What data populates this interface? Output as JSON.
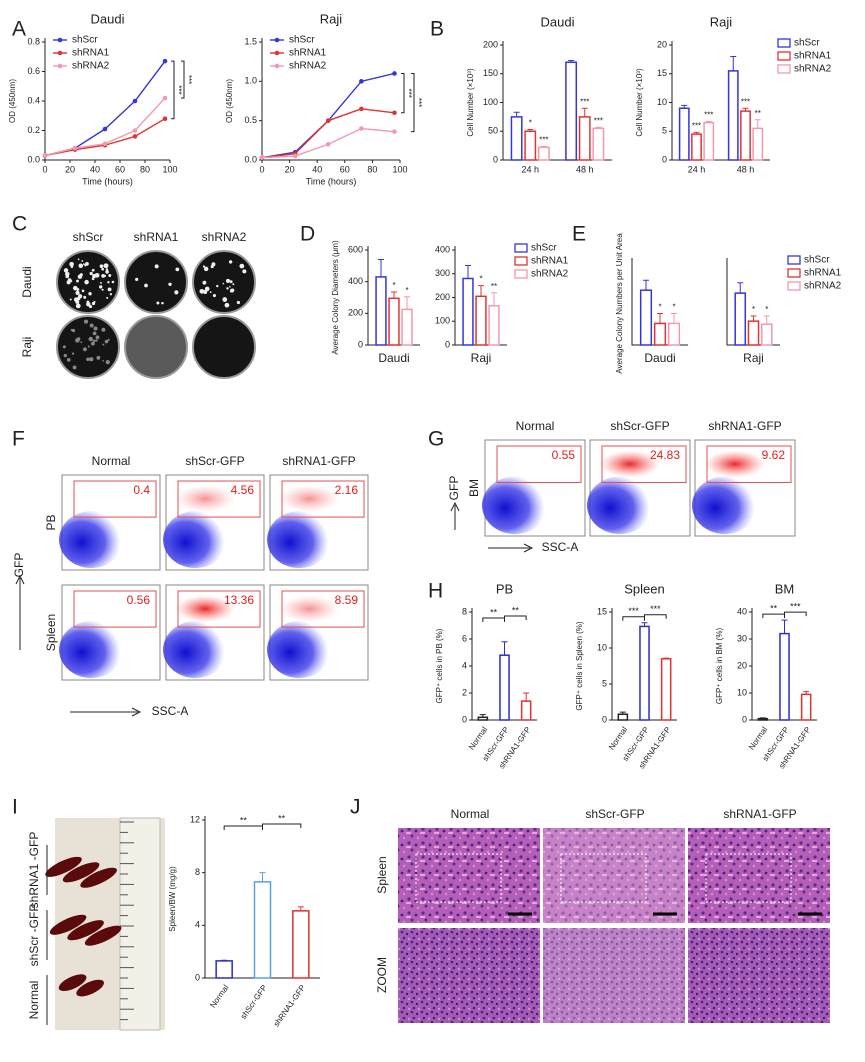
{
  "panel_letters": [
    "A",
    "B",
    "C",
    "D",
    "E",
    "F",
    "G",
    "H",
    "I",
    "J"
  ],
  "chart_data": [
    {
      "type": "line",
      "title": "Daudi",
      "x_label": "Time (hours)",
      "y_label": "OD (450nm)",
      "x": [
        0,
        24,
        48,
        72,
        96
      ],
      "series": [
        {
          "name": "shScr",
          "color": "#3535d8",
          "values": [
            0.03,
            0.08,
            0.21,
            0.4,
            0.67
          ]
        },
        {
          "name": "shRNA1",
          "color": "#e03434",
          "values": [
            0.03,
            0.07,
            0.1,
            0.16,
            0.28
          ]
        },
        {
          "name": "shRNA2",
          "color": "#f29aac",
          "values": [
            0.03,
            0.08,
            0.11,
            0.2,
            0.42
          ]
        }
      ],
      "xlim": [
        0,
        100
      ],
      "xticks": [
        0,
        20,
        40,
        60,
        80,
        100
      ],
      "ylim": [
        0,
        0.8
      ],
      "yticks": [
        {
          "value": 0,
          "label": "0.0"
        },
        0.2,
        0.4,
        0.6,
        0.8
      ],
      "legend": "upper left",
      "annotations": [
        "***",
        "***"
      ]
    },
    {
      "type": "line",
      "title": "Raji",
      "x_label": "Time (hours)",
      "y_label": "OD (450nm)",
      "x": [
        0,
        24,
        48,
        72,
        96
      ],
      "series": [
        {
          "name": "shScr",
          "color": "#3535d8",
          "values": [
            0.03,
            0.1,
            0.5,
            1.0,
            1.1
          ]
        },
        {
          "name": "shRNA1",
          "color": "#e03434",
          "values": [
            0.03,
            0.08,
            0.5,
            0.65,
            0.6
          ]
        },
        {
          "name": "shRNA2",
          "color": "#f29aac",
          "values": [
            0.03,
            0.05,
            0.2,
            0.4,
            0.36
          ]
        }
      ],
      "xlim": [
        0,
        100
      ],
      "xticks": [
        0,
        20,
        40,
        60,
        80,
        100
      ],
      "ylim": [
        0,
        1.5
      ],
      "yticks": [
        {
          "value": 0,
          "label": "0.0"
        },
        0.5,
        {
          "value": 1,
          "label": "1.0"
        },
        1.5
      ],
      "legend": "upper left",
      "annotations": [
        "***",
        "***"
      ]
    },
    {
      "type": "bar",
      "title": "Daudi",
      "y_label": "Cell Number (×10³)",
      "categories": [
        "24 h",
        "48 h"
      ],
      "series": [
        {
          "name": "shScr",
          "color": "#3535d8",
          "values": [
            75,
            170
          ],
          "errors": [
            8,
            3
          ],
          "sig": [
            null,
            null
          ]
        },
        {
          "name": "shRNA1",
          "color": "#e03434",
          "values": [
            50,
            75
          ],
          "errors": [
            3,
            15
          ],
          "sig": [
            "*",
            "***"
          ]
        },
        {
          "name": "shRNA2",
          "color": "#f29aac",
          "values": [
            22,
            55
          ],
          "errors": [
            2,
            2
          ],
          "sig": [
            "***",
            "***"
          ]
        }
      ],
      "ylim": [
        0,
        200
      ],
      "yticks": [
        0,
        50,
        100,
        150,
        200
      ]
    },
    {
      "type": "bar",
      "title": "Raji",
      "y_label": "Cell Number (×10³)",
      "categories": [
        "24 h",
        "48 h"
      ],
      "series": [
        {
          "name": "shScr",
          "color": "#3535d8",
          "values": [
            9,
            15.5
          ],
          "errors": [
            0.5,
            2.5
          ],
          "sig": [
            null,
            null
          ]
        },
        {
          "name": "shRNA1",
          "color": "#e03434",
          "values": [
            4.5,
            8.5
          ],
          "errors": [
            0.3,
            0.5
          ],
          "sig": [
            "***",
            "***"
          ]
        },
        {
          "name": "shRNA2",
          "color": "#f29aac",
          "values": [
            6.5,
            5.5
          ],
          "errors": [
            0.2,
            1.5
          ],
          "sig": [
            "***",
            "**"
          ]
        }
      ],
      "ylim": [
        0,
        20
      ],
      "yticks": [
        0,
        5,
        10,
        15,
        20
      ],
      "legend": "right"
    },
    {
      "type": "bar",
      "y_label": "Average Colony Diameters (μm)",
      "categories": [
        "Daudi"
      ],
      "series": [
        {
          "name": "shScr",
          "color": "#3535d8",
          "values": [
            430
          ],
          "errors": [
            110
          ],
          "sig": [
            null
          ]
        },
        {
          "name": "shRNA1",
          "color": "#e03434",
          "values": [
            295
          ],
          "errors": [
            40
          ],
          "sig": [
            "*"
          ]
        },
        {
          "name": "shRNA2",
          "color": "#f29aac",
          "values": [
            225
          ],
          "errors": [
            80
          ],
          "sig": [
            "*"
          ]
        }
      ],
      "ylim": [
        0,
        600
      ],
      "yticks": [
        0,
        200,
        400,
        600
      ]
    },
    {
      "type": "bar",
      "categories": [
        "Raji"
      ],
      "series": [
        {
          "name": "shScr",
          "color": "#3535d8",
          "values": [
            280
          ],
          "errors": [
            55
          ],
          "sig": [
            null
          ]
        },
        {
          "name": "shRNA1",
          "color": "#e03434",
          "values": [
            205
          ],
          "errors": [
            45
          ],
          "sig": [
            "*"
          ]
        },
        {
          "name": "shRNA2",
          "color": "#f29aac",
          "values": [
            165
          ],
          "errors": [
            55
          ],
          "sig": [
            "**"
          ]
        }
      ],
      "ylim": [
        0,
        400
      ],
      "yticks": [
        0,
        100,
        200,
        300,
        400
      ],
      "legend": "right"
    },
    {
      "type": "bar",
      "y_label": "Average Colony Numbers per Unit Area",
      "categories": [
        "Daudi"
      ],
      "series": [
        {
          "name": "shScr",
          "color": "#3535d8",
          "values": [
            3.3
          ],
          "errors": [
            0.6
          ],
          "sig": [
            null
          ]
        },
        {
          "name": "shRNA1",
          "color": "#e03434",
          "values": [
            1.3
          ],
          "errors": [
            0.6
          ],
          "sig": [
            "*"
          ]
        },
        {
          "name": "shRNA2",
          "color": "#f29aac",
          "values": [
            1.3
          ],
          "errors": [
            0.6
          ],
          "sig": [
            "*"
          ]
        }
      ],
      "ylim": [
        0,
        5
      ]
    },
    {
      "type": "bar",
      "categories": [
        "Raji"
      ],
      "series": [
        {
          "name": "shScr",
          "color": "#3535d8",
          "values": [
            5
          ],
          "errors": [
            1
          ],
          "sig": [
            null
          ]
        },
        {
          "name": "shRNA1",
          "color": "#e03434",
          "values": [
            2.3
          ],
          "errors": [
            0.5
          ],
          "sig": [
            "*"
          ]
        },
        {
          "name": "shRNA2",
          "color": "#f29aac",
          "values": [
            2.0
          ],
          "errors": [
            0.8
          ],
          "sig": [
            "*"
          ]
        }
      ],
      "ylim": [
        0,
        8
      ],
      "legend": "right"
    },
    {
      "type": "bar",
      "title": "PB",
      "y_label": "GFP⁺ cells in PB (%)",
      "categories": [
        "Normal",
        "shScr-GFP",
        "shRNA1-GFP"
      ],
      "values": [
        0.2,
        4.8,
        1.4
      ],
      "errors": [
        0.2,
        1.0,
        0.6
      ],
      "colors": [
        "#222222",
        "#2b2bd0",
        "#e03030"
      ],
      "ylim": [
        0,
        8
      ],
      "yticks": [
        0,
        2,
        4,
        6,
        8
      ],
      "comparisons": [
        {
          "pair": [
            0,
            1
          ],
          "label": "**"
        },
        {
          "pair": [
            1,
            2
          ],
          "label": "**"
        }
      ]
    },
    {
      "type": "bar",
      "title": "Spleen",
      "y_label": "GFP⁺ cells in Spleen (%)",
      "categories": [
        "Normal",
        "shScr-GFP",
        "shRNA1-GFP"
      ],
      "values": [
        0.8,
        13,
        8.5
      ],
      "errors": [
        0.3,
        0.5,
        0.1
      ],
      "colors": [
        "#222222",
        "#2b2bd0",
        "#e03030"
      ],
      "ylim": [
        0,
        15
      ],
      "yticks": [
        0,
        5,
        10,
        15
      ],
      "comparisons": [
        {
          "pair": [
            0,
            1
          ],
          "label": "***"
        },
        {
          "pair": [
            1,
            2
          ],
          "label": "***"
        }
      ]
    },
    {
      "type": "bar",
      "title": "BM",
      "y_label": "GFP⁺ cells in BM (%)",
      "categories": [
        "Normal",
        "shScr-GFP",
        "shRNA1-GFP"
      ],
      "values": [
        0.5,
        32,
        9.5
      ],
      "errors": [
        0.3,
        5,
        1
      ],
      "colors": [
        "#222222",
        "#2b2bd0",
        "#e03030"
      ],
      "ylim": [
        0,
        40
      ],
      "yticks": [
        0,
        10,
        20,
        30,
        40
      ],
      "comparisons": [
        {
          "pair": [
            0,
            1
          ],
          "label": "**"
        },
        {
          "pair": [
            1,
            2
          ],
          "label": "***"
        }
      ]
    },
    {
      "type": "bar",
      "y_label": "Spleen/BW (mg/g)",
      "categories": [
        "Normal",
        "shScr-GFP",
        "shRNA1-GFP"
      ],
      "values": [
        1.3,
        7.3,
        5.1
      ],
      "errors": [
        0.05,
        0.7,
        0.3
      ],
      "colors": [
        "#2b2bd0",
        "#5aa0e8",
        "#e03030"
      ],
      "ylim": [
        0,
        12
      ],
      "yticks": [
        0,
        4,
        8,
        12
      ],
      "comparisons": [
        {
          "pair": [
            0,
            1
          ],
          "label": "**"
        },
        {
          "pair": [
            1,
            2
          ],
          "label": "**"
        }
      ]
    }
  ],
  "colony": {
    "columns": [
      "shScr",
      "shRNA1",
      "shRNA2"
    ],
    "rows": [
      "Daudi",
      "Raji"
    ]
  },
  "flow_pb_spleen": {
    "columns": [
      "Normal",
      "shScr-GFP",
      "shRNA1-GFP"
    ],
    "rows": [
      "PB",
      "Spleen"
    ],
    "values": [
      [
        0.4,
        4.56,
        2.16
      ],
      [
        0.56,
        13.36,
        8.59
      ]
    ],
    "y_label": "GFP",
    "x_label": "SSC-A"
  },
  "flow_bm": {
    "columns": [
      "Normal",
      "shScr-GFP",
      "shRNA1-GFP"
    ],
    "rows": [
      "BM"
    ],
    "values": [
      [
        0.55,
        24.83,
        9.62
      ]
    ],
    "y_label": "GFP",
    "x_label": "SSC-A"
  },
  "spleen_photo": {
    "labels": [
      "shRNA1 -GFP",
      "shScr -GFP",
      "Normal"
    ]
  },
  "histology": {
    "columns": [
      "Normal",
      "shScr-GFP",
      "shRNA1-GFP"
    ],
    "rows": [
      "Spleen",
      "ZOOM"
    ]
  }
}
